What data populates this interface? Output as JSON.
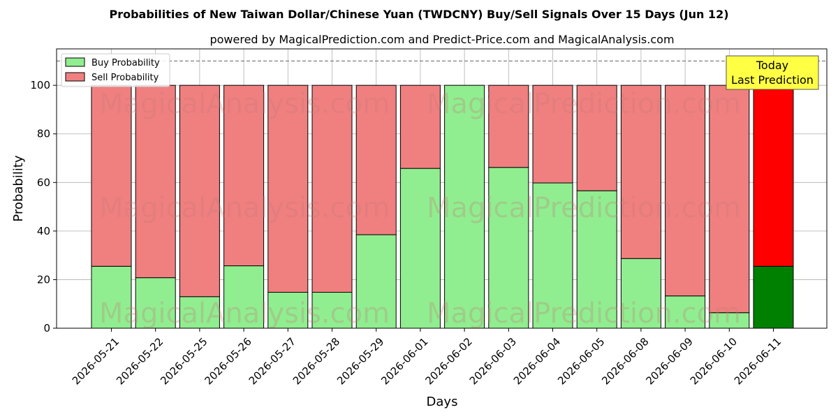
{
  "chart_data": {
    "type": "bar",
    "stacked": true,
    "title": "Probabilities of New Taiwan Dollar/Chinese Yuan (TWDCNY) Buy/Sell Signals Over 15 Days (Jun 12)",
    "subtitle": "powered by MagicalPrediction.com and Predict-Price.com and MagicalAnalysis.com",
    "xlabel": "Days",
    "ylabel": "Probability",
    "ylim": [
      0,
      115
    ],
    "yticks": [
      0,
      20,
      40,
      60,
      80,
      100
    ],
    "grid": true,
    "legend_position": "upper-left",
    "reference_line": 110,
    "categories": [
      "2026-05-21",
      "2026-05-22",
      "2026-05-25",
      "2026-05-26",
      "2026-05-27",
      "2026-05-28",
      "2026-05-29",
      "2026-06-01",
      "2026-06-02",
      "2026-06-03",
      "2026-06-04",
      "2026-06-05",
      "2026-06-08",
      "2026-06-09",
      "2026-06-10",
      "2026-06-11"
    ],
    "series": [
      {
        "name": "Buy Probability",
        "color": "#90ee90",
        "values": [
          25.5,
          20.8,
          13.0,
          25.7,
          14.8,
          14.8,
          38.5,
          65.8,
          100.0,
          66.2,
          59.8,
          56.6,
          28.7,
          13.3,
          6.4,
          25.5
        ]
      },
      {
        "name": "Sell Probability",
        "color": "#f08080",
        "values": [
          74.5,
          79.2,
          87.0,
          74.3,
          85.2,
          85.2,
          61.5,
          34.2,
          0.0,
          33.8,
          40.2,
          43.4,
          71.3,
          86.7,
          93.6,
          74.5
        ]
      }
    ],
    "highlight": {
      "index": 15,
      "buy_color": "#008000",
      "sell_color": "#ff0000"
    },
    "annotation": {
      "lines": [
        "Today",
        "Last Prediction"
      ],
      "background": "#ffff44"
    },
    "watermarks": [
      "MagicalAnalysis.com",
      "MagicalPrediction.com"
    ]
  }
}
